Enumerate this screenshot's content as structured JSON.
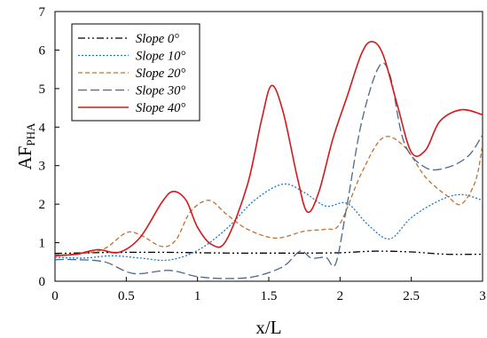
{
  "chart_data": {
    "type": "line",
    "xlabel": "x/L",
    "ylabel_main": "AF",
    "ylabel_sub": "PHA",
    "xlim": [
      0,
      3
    ],
    "ylim": [
      0,
      7
    ],
    "xticks": [
      0,
      0.5,
      1,
      1.5,
      2,
      2.5,
      3
    ],
    "yticks": [
      0,
      1,
      2,
      3,
      4,
      5,
      6,
      7
    ],
    "xtick_labels": [
      "0",
      "0.5",
      "1",
      "1.5",
      "2",
      "2.5",
      "3"
    ],
    "ytick_labels": [
      "0",
      "1",
      "2",
      "3",
      "4",
      "5",
      "6",
      "7"
    ],
    "grid": false,
    "legend_position": "top-left",
    "series": [
      {
        "name": "Slope 0°",
        "color": "#000000",
        "dash": "dashdotdot",
        "x": [
          0,
          0.25,
          0.5,
          0.75,
          1.0,
          1.25,
          1.5,
          1.75,
          2.0,
          2.25,
          2.5,
          2.75,
          3.0
        ],
        "y": [
          0.72,
          0.74,
          0.75,
          0.75,
          0.74,
          0.73,
          0.73,
          0.73,
          0.74,
          0.78,
          0.76,
          0.7,
          0.7
        ]
      },
      {
        "name": "Slope 10°",
        "color": "#1f78c8",
        "dash": "dot",
        "x": [
          0,
          0.2,
          0.4,
          0.6,
          0.8,
          1.0,
          1.2,
          1.4,
          1.6,
          1.75,
          1.9,
          2.05,
          2.2,
          2.35,
          2.5,
          2.7,
          2.85,
          3.0
        ],
        "y": [
          0.62,
          0.6,
          0.66,
          0.6,
          0.55,
          0.8,
          1.35,
          2.1,
          2.52,
          2.3,
          1.95,
          2.02,
          1.45,
          1.1,
          1.65,
          2.1,
          2.25,
          2.1
        ]
      },
      {
        "name": "Slope 20°",
        "color": "#c07030",
        "dash": "dash",
        "x": [
          0,
          0.2,
          0.35,
          0.5,
          0.6,
          0.75,
          0.85,
          0.95,
          1.08,
          1.2,
          1.35,
          1.55,
          1.75,
          1.9,
          2.0,
          2.15,
          2.3,
          2.45,
          2.6,
          2.75,
          2.85,
          2.95,
          3.0
        ],
        "y": [
          0.68,
          0.72,
          0.85,
          1.26,
          1.2,
          0.9,
          1.08,
          1.8,
          2.1,
          1.75,
          1.35,
          1.12,
          1.3,
          1.35,
          1.5,
          2.8,
          3.72,
          3.5,
          2.7,
          2.22,
          2.0,
          2.6,
          3.55
        ]
      },
      {
        "name": "Slope 30°",
        "color": "#4a6a8a",
        "dash": "longdash",
        "x": [
          0,
          0.15,
          0.35,
          0.55,
          0.8,
          1.0,
          1.2,
          1.4,
          1.6,
          1.72,
          1.8,
          1.9,
          1.97,
          2.05,
          2.15,
          2.27,
          2.35,
          2.45,
          2.6,
          2.75,
          2.9,
          3.0
        ],
        "y": [
          0.56,
          0.56,
          0.5,
          0.2,
          0.28,
          0.12,
          0.07,
          0.12,
          0.38,
          0.78,
          0.6,
          0.62,
          0.46,
          2.0,
          4.1,
          5.55,
          5.35,
          3.6,
          2.95,
          2.95,
          3.25,
          3.8
        ]
      },
      {
        "name": "Slope 40°",
        "color": "#d4191c",
        "dash": "solid",
        "x": [
          0,
          0.15,
          0.3,
          0.45,
          0.6,
          0.75,
          0.83,
          0.92,
          1.0,
          1.1,
          1.2,
          1.35,
          1.45,
          1.52,
          1.6,
          1.7,
          1.77,
          1.85,
          1.95,
          2.05,
          2.15,
          2.22,
          2.3,
          2.4,
          2.5,
          2.6,
          2.7,
          2.85,
          3.0
        ],
        "y": [
          0.66,
          0.7,
          0.82,
          0.75,
          1.15,
          2.05,
          2.33,
          2.1,
          1.4,
          0.95,
          1.05,
          2.5,
          4.2,
          5.08,
          4.4,
          2.7,
          1.8,
          2.3,
          3.7,
          4.8,
          5.9,
          6.22,
          5.9,
          4.6,
          3.35,
          3.4,
          4.15,
          4.45,
          4.32
        ]
      }
    ]
  }
}
